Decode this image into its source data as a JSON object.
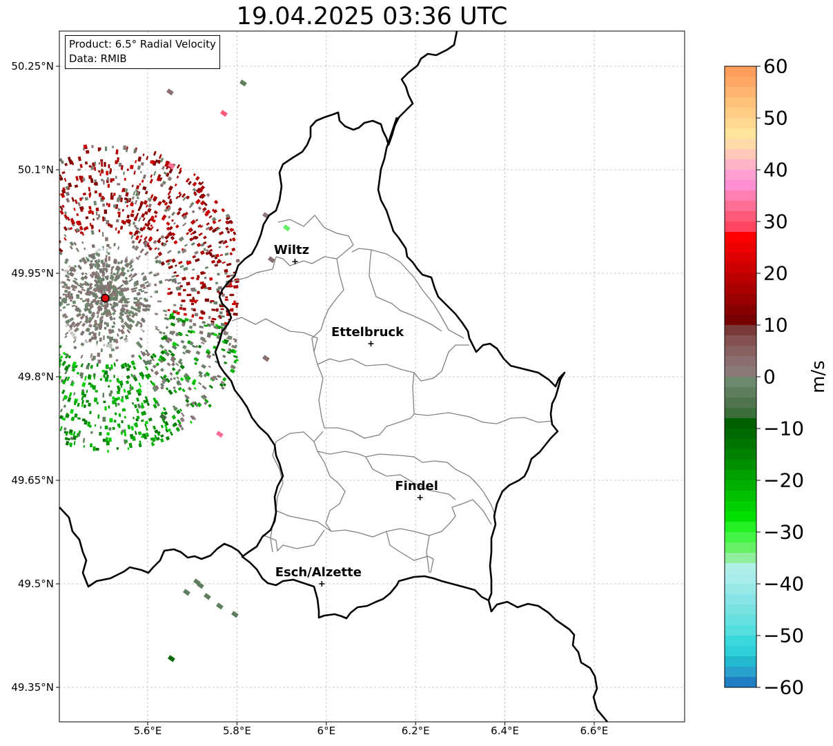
{
  "title": "19.04.2025 03:36 UTC",
  "info": {
    "product": "Product: 6.5° Radial Velocity",
    "source": "Data: RMIB"
  },
  "map": {
    "extent": {
      "lon_min": 5.4,
      "lon_max": 6.8,
      "lat_min": 49.3,
      "lat_max": 50.3
    },
    "gridlines": true,
    "lat_ticks": [
      {
        "value": 50.25,
        "label": "50.25°N"
      },
      {
        "value": 50.1,
        "label": "50.1°N"
      },
      {
        "value": 49.95,
        "label": "49.95°N"
      },
      {
        "value": 49.8,
        "label": "49.8°N"
      },
      {
        "value": 49.65,
        "label": "49.65°N"
      },
      {
        "value": 49.5,
        "label": "49.5°N"
      },
      {
        "value": 49.35,
        "label": "49.35°N"
      }
    ],
    "lon_ticks": [
      {
        "value": 5.6,
        "label": "5.6°E"
      },
      {
        "value": 5.8,
        "label": "5.8°E"
      },
      {
        "value": 6.0,
        "label": "6°E"
      },
      {
        "value": 6.2,
        "label": "6.2°E"
      },
      {
        "value": 6.4,
        "label": "6.4°E"
      },
      {
        "value": 6.6,
        "label": "6.6°E"
      }
    ],
    "cities": [
      {
        "name": "Wiltz",
        "lon": 5.93,
        "lat": 49.967
      },
      {
        "name": "Ettelbruck",
        "lon": 6.1,
        "lat": 49.848
      },
      {
        "name": "Findel",
        "lon": 6.21,
        "lat": 49.625
      },
      {
        "name": "Esch/Alzette",
        "lon": 5.99,
        "lat": 49.5
      }
    ],
    "radar_site": {
      "lon": 5.505,
      "lat": 49.914,
      "color": "#e00000"
    }
  },
  "colorbar": {
    "unit": "m/s",
    "min": -60,
    "max": 60,
    "ticks": [
      {
        "value": 60,
        "label": "60"
      },
      {
        "value": 50,
        "label": "50"
      },
      {
        "value": 40,
        "label": "40"
      },
      {
        "value": 30,
        "label": "30"
      },
      {
        "value": 20,
        "label": "20"
      },
      {
        "value": 10,
        "label": "10"
      },
      {
        "value": 0,
        "label": "0"
      },
      {
        "value": -10,
        "label": "−10"
      },
      {
        "value": -20,
        "label": "−20"
      },
      {
        "value": -30,
        "label": "−30"
      },
      {
        "value": -40,
        "label": "−40"
      },
      {
        "value": -50,
        "label": "−50"
      },
      {
        "value": -60,
        "label": "−60"
      }
    ],
    "bands": [
      {
        "from": 58,
        "to": 60,
        "color": "#ff9d5c"
      },
      {
        "from": 56,
        "to": 58,
        "color": "#ffa866"
      },
      {
        "from": 54,
        "to": 56,
        "color": "#ffb56f"
      },
      {
        "from": 52,
        "to": 54,
        "color": "#ffc27a"
      },
      {
        "from": 50,
        "to": 52,
        "color": "#ffcc85"
      },
      {
        "from": 48,
        "to": 50,
        "color": "#ffd890"
      },
      {
        "from": 46,
        "to": 48,
        "color": "#ffe59b"
      },
      {
        "from": 44,
        "to": 46,
        "color": "#ffd9a8"
      },
      {
        "from": 42,
        "to": 44,
        "color": "#ffc8b8"
      },
      {
        "from": 40,
        "to": 42,
        "color": "#ffb3c6"
      },
      {
        "from": 38,
        "to": 40,
        "color": "#ff9ed0"
      },
      {
        "from": 36,
        "to": 38,
        "color": "#ff8fd3"
      },
      {
        "from": 34,
        "to": 36,
        "color": "#ff7fb2"
      },
      {
        "from": 32,
        "to": 34,
        "color": "#ff6e95"
      },
      {
        "from": 30,
        "to": 32,
        "color": "#ff5a7a"
      },
      {
        "from": 28,
        "to": 30,
        "color": "#ff4560"
      },
      {
        "from": 26,
        "to": 28,
        "color": "#ff0000"
      },
      {
        "from": 24,
        "to": 26,
        "color": "#ee0000"
      },
      {
        "from": 22,
        "to": 24,
        "color": "#dd0000"
      },
      {
        "from": 20,
        "to": 22,
        "color": "#cc0000"
      },
      {
        "from": 18,
        "to": 20,
        "color": "#bb0000"
      },
      {
        "from": 16,
        "to": 18,
        "color": "#aa0000"
      },
      {
        "from": 14,
        "to": 16,
        "color": "#990000"
      },
      {
        "from": 12,
        "to": 14,
        "color": "#880000"
      },
      {
        "from": 10,
        "to": 12,
        "color": "#770000"
      },
      {
        "from": 8,
        "to": 10,
        "color": "#7a3a3a"
      },
      {
        "from": 6,
        "to": 8,
        "color": "#845050"
      },
      {
        "from": 4,
        "to": 6,
        "color": "#886060"
      },
      {
        "from": 2,
        "to": 4,
        "color": "#8a6e70"
      },
      {
        "from": 0,
        "to": 2,
        "color": "#8a7a78"
      },
      {
        "from": -2,
        "to": 0,
        "color": "#6e8a6e"
      },
      {
        "from": -4,
        "to": -2,
        "color": "#5e7e5e"
      },
      {
        "from": -6,
        "to": -4,
        "color": "#507350"
      },
      {
        "from": -8,
        "to": -6,
        "color": "#3a6e3a"
      },
      {
        "from": -10,
        "to": -8,
        "color": "#006000"
      },
      {
        "from": -12,
        "to": -10,
        "color": "#006a00"
      },
      {
        "from": -14,
        "to": -12,
        "color": "#007600"
      },
      {
        "from": -16,
        "to": -14,
        "color": "#008200"
      },
      {
        "from": -18,
        "to": -16,
        "color": "#009000"
      },
      {
        "from": -20,
        "to": -18,
        "color": "#00a000"
      },
      {
        "from": -22,
        "to": -20,
        "color": "#00b000"
      },
      {
        "from": -24,
        "to": -22,
        "color": "#00c000"
      },
      {
        "from": -26,
        "to": -24,
        "color": "#00d000"
      },
      {
        "from": -28,
        "to": -26,
        "color": "#00e000"
      },
      {
        "from": -30,
        "to": -28,
        "color": "#22f022"
      },
      {
        "from": -32,
        "to": -30,
        "color": "#44f444"
      },
      {
        "from": -34,
        "to": -32,
        "color": "#66f066"
      },
      {
        "from": -36,
        "to": -34,
        "color": "#90ee9c"
      },
      {
        "from": -38,
        "to": -36,
        "color": "#b0eee8"
      },
      {
        "from": -40,
        "to": -38,
        "color": "#a8ecec"
      },
      {
        "from": -42,
        "to": -40,
        "color": "#98e8e8"
      },
      {
        "from": -44,
        "to": -42,
        "color": "#88e4e4"
      },
      {
        "from": -46,
        "to": -44,
        "color": "#78e2e2"
      },
      {
        "from": -48,
        "to": -46,
        "color": "#66e0e0"
      },
      {
        "from": -50,
        "to": -48,
        "color": "#55dede"
      },
      {
        "from": -52,
        "to": -50,
        "color": "#3ad8dc"
      },
      {
        "from": -54,
        "to": -52,
        "color": "#2fd0d8"
      },
      {
        "from": -56,
        "to": -54,
        "color": "#22b8d0"
      },
      {
        "from": -58,
        "to": -56,
        "color": "#2aa0cc"
      },
      {
        "from": -60,
        "to": -58,
        "color": "#1f7fc4"
      }
    ]
  }
}
